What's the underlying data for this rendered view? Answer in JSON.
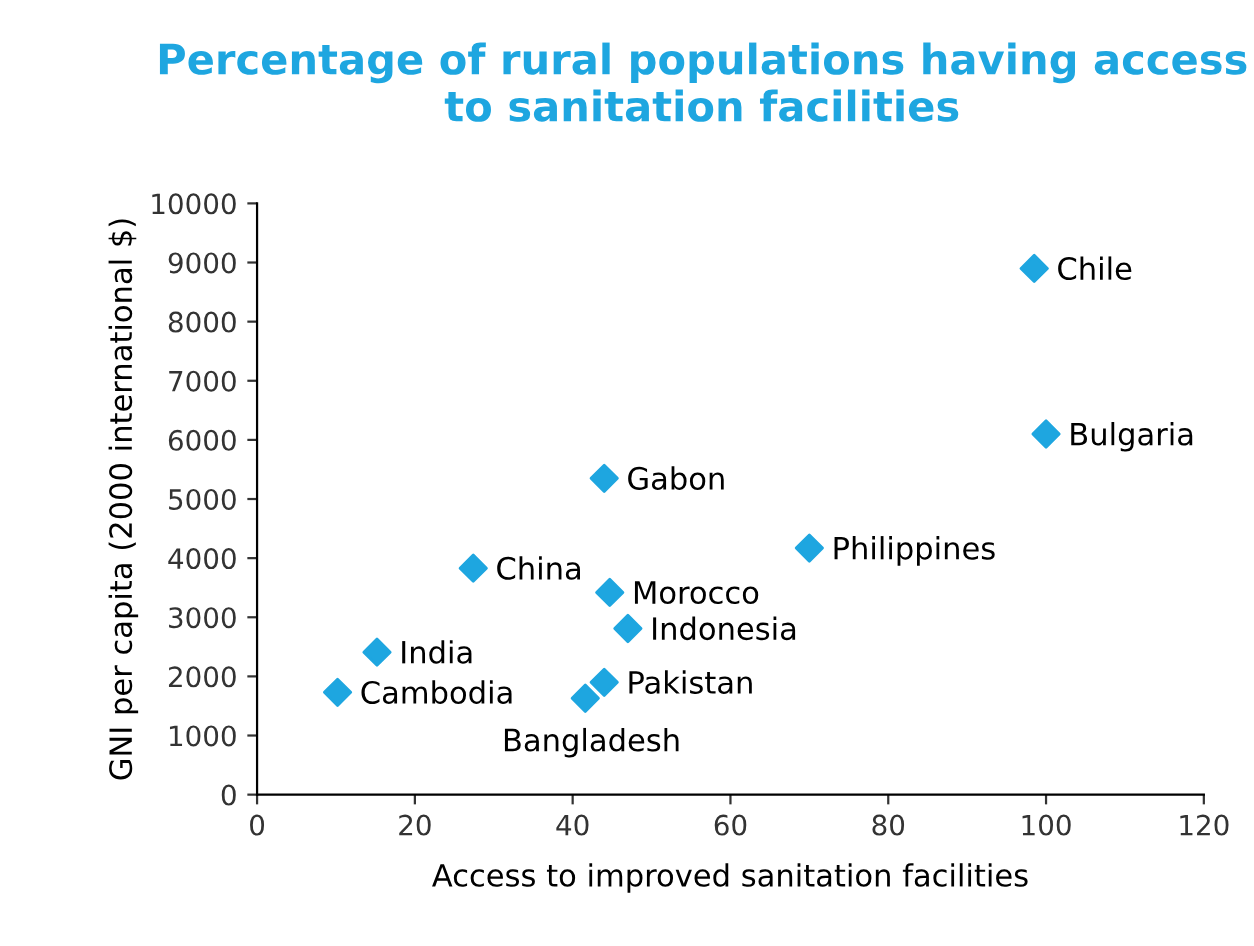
{
  "chart_data": {
    "type": "scatter",
    "title": "Percentage of rural populations having access to sanitation facilities",
    "xlabel": "Access to improved sanitation facilities",
    "ylabel": "GNI per capita (2000 international $)",
    "x": [
      98.5,
      100,
      44,
      70,
      27.4,
      44.7,
      47,
      15.2,
      44,
      10.2,
      41.6
    ],
    "series": [
      {
        "color": "#1ea6e0",
        "values": [
          8900,
          6100,
          5350,
          4170,
          3830,
          3420,
          2810,
          2410,
          1900,
          1730,
          1630
        ]
      }
    ],
    "annotations": [
      {
        "text": "Chile",
        "x": 98.5,
        "y": 8900
      },
      {
        "text": "Bulgaria",
        "x": 100,
        "y": 6100
      },
      {
        "text": "Gabon",
        "x": 44,
        "y": 5350
      },
      {
        "text": "Philippines",
        "x": 70,
        "y": 4170
      },
      {
        "text": "China",
        "x": 27.4,
        "y": 3830
      },
      {
        "text": "Morocco",
        "x": 44.7,
        "y": 3420
      },
      {
        "text": "Indonesia",
        "x": 47,
        "y": 2810
      },
      {
        "text": "India",
        "x": 15.2,
        "y": 2410
      },
      {
        "text": "Pakistan",
        "x": 44,
        "y": 1900
      },
      {
        "text": "Cambodia",
        "x": 10.2,
        "y": 1730
      },
      {
        "text": "Bangladesh",
        "x": 41.6,
        "y": 1630
      }
    ],
    "xlim": [
      0,
      120
    ],
    "xticks": [
      0,
      20,
      40,
      60,
      80,
      100,
      120
    ],
    "ylim": [
      0,
      10000
    ],
    "yticks": [
      0,
      1000,
      2000,
      3000,
      4000,
      5000,
      6000,
      7000,
      8000,
      9000,
      10000
    ],
    "marker": "diamond",
    "grid": false,
    "legend": false
  }
}
